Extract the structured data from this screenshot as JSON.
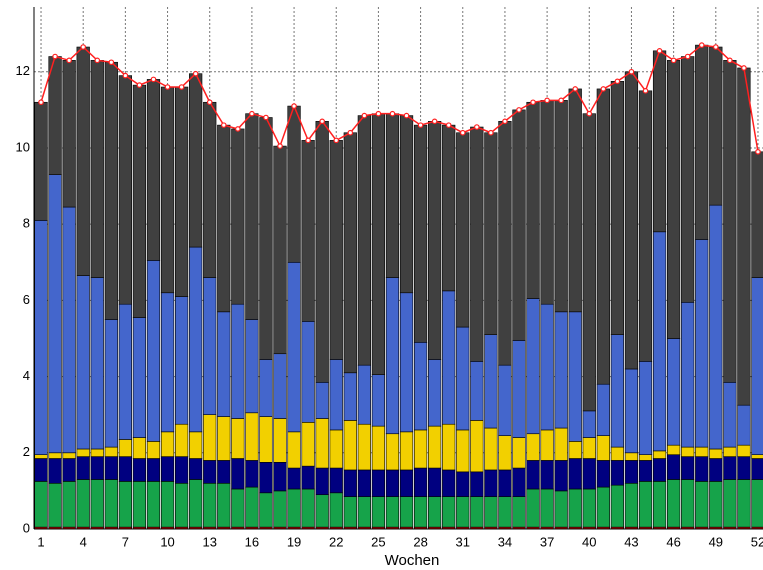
{
  "chart_data": {
    "type": "bar",
    "stacked": true,
    "x_label": "Wochen",
    "categories": [
      1,
      null,
      null,
      4,
      null,
      null,
      7,
      null,
      null,
      10,
      null,
      null,
      13,
      null,
      null,
      16,
      null,
      null,
      19,
      null,
      null,
      22,
      null,
      null,
      25,
      null,
      null,
      28,
      null,
      null,
      31,
      null,
      null,
      34,
      null,
      null,
      37,
      null,
      null,
      40,
      null,
      null,
      43,
      null,
      null,
      46,
      null,
      null,
      49,
      null,
      null,
      52
    ],
    "ylim": [
      0,
      13.7
    ],
    "yticks": [
      0,
      2,
      4,
      6,
      8,
      10,
      12
    ],
    "grid": true,
    "series": [
      {
        "color": "#c00000",
        "values": [
          0.05,
          0.05,
          0.05,
          0.05,
          0.05,
          0.05,
          0.05,
          0.05,
          0.05,
          0.05,
          0.05,
          0.05,
          0.05,
          0.05,
          0.05,
          0.05,
          0.05,
          0.05,
          0.05,
          0.05,
          0.05,
          0.05,
          0.05,
          0.05,
          0.05,
          0.05,
          0.05,
          0.05,
          0.05,
          0.05,
          0.05,
          0.05,
          0.05,
          0.05,
          0.05,
          0.05,
          0.05,
          0.05,
          0.05,
          0.05,
          0.05,
          0.05,
          0.05,
          0.05,
          0.05,
          0.05,
          0.05,
          0.05,
          0.05,
          0.05,
          0.05,
          0.05
        ]
      },
      {
        "color": "#16a34a",
        "values": [
          1.2,
          1.15,
          1.2,
          1.25,
          1.25,
          1.25,
          1.2,
          1.2,
          1.2,
          1.2,
          1.15,
          1.25,
          1.15,
          1.15,
          1.0,
          1.05,
          0.9,
          0.95,
          1.0,
          1.0,
          0.85,
          0.9,
          0.8,
          0.8,
          0.8,
          0.8,
          0.8,
          0.8,
          0.8,
          0.8,
          0.8,
          0.8,
          0.8,
          0.8,
          0.8,
          1.0,
          1.0,
          0.95,
          1.0,
          1.0,
          1.05,
          1.1,
          1.15,
          1.2,
          1.2,
          1.25,
          1.25,
          1.2,
          1.2,
          1.25,
          1.25,
          1.25
        ]
      },
      {
        "color": "#000080",
        "values": [
          0.6,
          0.65,
          0.6,
          0.6,
          0.6,
          0.6,
          0.65,
          0.6,
          0.6,
          0.65,
          0.7,
          0.55,
          0.6,
          0.6,
          0.8,
          0.7,
          0.8,
          0.75,
          0.55,
          0.6,
          0.7,
          0.65,
          0.7,
          0.7,
          0.7,
          0.7,
          0.7,
          0.75,
          0.75,
          0.7,
          0.65,
          0.65,
          0.7,
          0.7,
          0.75,
          0.75,
          0.75,
          0.8,
          0.8,
          0.8,
          0.7,
          0.65,
          0.6,
          0.55,
          0.6,
          0.65,
          0.6,
          0.65,
          0.6,
          0.6,
          0.6,
          0.55
        ]
      },
      {
        "color": "#f2d000",
        "values": [
          0.1,
          0.15,
          0.15,
          0.2,
          0.2,
          0.25,
          0.45,
          0.55,
          0.45,
          0.65,
          0.85,
          0.7,
          1.2,
          1.15,
          1.05,
          1.25,
          1.2,
          1.15,
          0.95,
          1.15,
          1.3,
          1.0,
          1.3,
          1.2,
          1.15,
          0.95,
          1.0,
          1.0,
          1.1,
          1.2,
          1.1,
          1.35,
          1.1,
          0.9,
          0.8,
          0.7,
          0.8,
          0.85,
          0.45,
          0.55,
          0.65,
          0.35,
          0.2,
          0.15,
          0.2,
          0.25,
          0.25,
          0.25,
          0.25,
          0.25,
          0.3,
          0.1
        ]
      },
      {
        "color": "#4466cc",
        "values": [
          6.15,
          7.3,
          6.45,
          4.55,
          4.5,
          3.35,
          3.55,
          3.15,
          4.75,
          3.65,
          3.35,
          4.85,
          3.6,
          2.75,
          3.0,
          2.45,
          1.5,
          1.7,
          4.45,
          2.65,
          0.95,
          1.85,
          1.25,
          1.55,
          1.35,
          4.1,
          3.65,
          2.3,
          1.75,
          3.5,
          2.7,
          1.55,
          2.45,
          1.85,
          2.55,
          3.55,
          3.3,
          3.05,
          3.4,
          0.7,
          1.35,
          2.95,
          2.2,
          2.45,
          5.75,
          2.8,
          3.8,
          5.45,
          6.4,
          1.7,
          1.05,
          4.65
        ]
      },
      {
        "color": "#404040",
        "values": [
          3.1,
          3.1,
          3.85,
          6.0,
          5.7,
          6.75,
          6.0,
          6.1,
          4.75,
          5.4,
          5.5,
          4.55,
          4.6,
          4.9,
          4.6,
          5.4,
          6.35,
          5.45,
          4.1,
          4.75,
          6.85,
          5.75,
          6.3,
          6.55,
          6.85,
          4.3,
          4.65,
          5.7,
          6.25,
          4.35,
          5.1,
          6.15,
          5.3,
          6.4,
          6.05,
          5.15,
          5.35,
          5.55,
          5.85,
          7.8,
          7.75,
          6.65,
          7.8,
          7.1,
          4.75,
          7.3,
          6.45,
          5.1,
          4.15,
          8.45,
          8.85,
          3.3
        ]
      },
      {
        "type": "line",
        "color": "#ff2020",
        "values": [
          11.2,
          12.4,
          12.3,
          12.65,
          12.3,
          12.25,
          11.9,
          11.65,
          11.8,
          11.6,
          11.6,
          11.95,
          11.2,
          10.6,
          10.5,
          10.9,
          10.8,
          10.05,
          11.1,
          10.2,
          10.7,
          10.2,
          10.4,
          10.85,
          10.9,
          10.9,
          10.85,
          10.6,
          10.7,
          10.6,
          10.4,
          10.55,
          10.4,
          10.7,
          11.0,
          11.2,
          11.25,
          11.25,
          11.55,
          10.9,
          11.55,
          11.75,
          12.0,
          11.5,
          12.55,
          12.3,
          12.4,
          12.7,
          12.65,
          12.3,
          12.1,
          9.9
        ]
      }
    ]
  }
}
